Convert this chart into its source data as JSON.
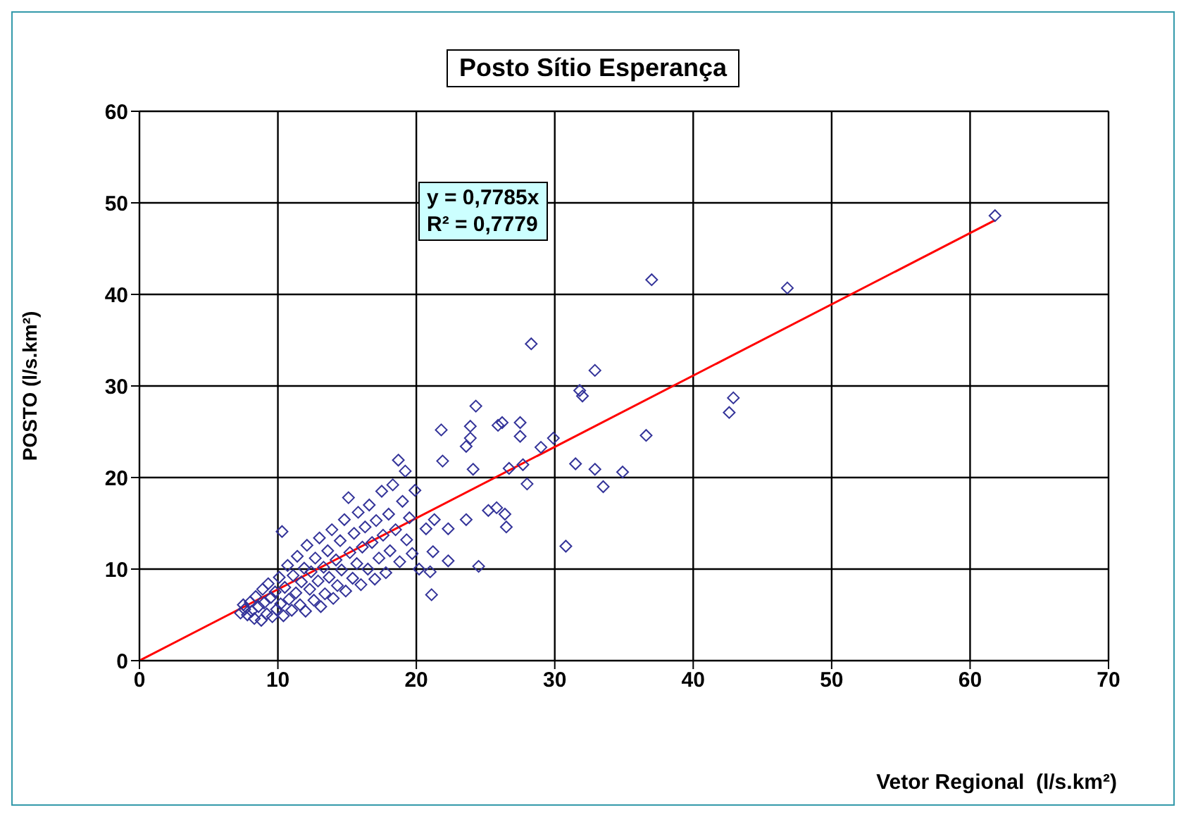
{
  "chart_data": {
    "type": "scatter",
    "title": "Posto Sítio Esperança",
    "xlabel": "Vetor Regional  (l/s.km²)",
    "ylabel": "POSTO (l/s.km²)",
    "annotations": [
      "y = 0,7785x",
      "R² = 0,7779"
    ],
    "xlim": [
      0,
      70
    ],
    "xticks": [
      0,
      10,
      20,
      30,
      40,
      50,
      60,
      70
    ],
    "ylim": [
      0,
      60
    ],
    "yticks": [
      0,
      10,
      20,
      30,
      40,
      50,
      60
    ],
    "grid": true,
    "series": [
      {
        "marker": "diamond",
        "color": "#333399",
        "x": [
          7.3,
          7.5,
          7.6,
          7.8,
          8.0,
          8.1,
          8.3,
          8.4,
          8.6,
          8.8,
          8.9,
          9.0,
          9.2,
          9.3,
          9.5,
          9.6,
          9.8,
          9.9,
          10.1,
          10.2,
          10.3,
          10.4,
          10.5,
          10.7,
          10.8,
          11.0,
          11.1,
          11.3,
          11.4,
          11.6,
          11.7,
          11.9,
          12.0,
          12.1,
          12.3,
          12.4,
          12.6,
          12.7,
          12.9,
          13.0,
          13.1,
          13.3,
          13.4,
          13.6,
          13.7,
          13.9,
          14.0,
          14.2,
          14.3,
          14.5,
          14.6,
          14.8,
          14.9,
          15.1,
          15.2,
          15.4,
          15.5,
          15.7,
          15.8,
          16.0,
          16.1,
          16.3,
          16.5,
          16.6,
          16.8,
          17.0,
          17.1,
          17.3,
          17.5,
          17.6,
          17.8,
          18.0,
          18.1,
          18.3,
          18.5,
          18.7,
          18.8,
          19.0,
          19.2,
          19.3,
          19.5,
          19.7,
          19.9,
          20.2,
          21.0,
          21.2,
          22.3,
          20.7,
          21.3,
          22.3,
          23.6,
          25.2,
          25.8,
          26.4,
          24.1,
          21.9,
          26.7,
          27.7,
          28.0,
          26.5,
          30.8,
          33.5,
          32.9,
          34.9,
          31.5,
          29.0,
          29.9,
          36.6,
          23.9,
          23.6,
          26.2,
          25.9,
          27.5,
          27.5,
          21.8,
          23.9,
          24.3,
          31.8,
          32.0,
          32.9,
          28.3,
          37.0,
          24.5,
          21.1,
          42.6,
          42.9,
          46.8,
          61.8
        ],
        "values": [
          5.2,
          6.1,
          5.6,
          5.0,
          6.4,
          5.4,
          4.6,
          7.0,
          5.9,
          4.4,
          7.8,
          6.3,
          5.1,
          8.4,
          6.9,
          4.8,
          7.5,
          5.6,
          9.1,
          6.2,
          14.1,
          4.9,
          8.0,
          10.4,
          6.7,
          5.5,
          9.3,
          7.4,
          11.4,
          6.1,
          8.6,
          10.1,
          5.4,
          12.6,
          7.8,
          9.7,
          6.6,
          11.2,
          8.7,
          13.4,
          5.9,
          10.2,
          7.3,
          12.0,
          9.1,
          14.3,
          6.8,
          11.0,
          8.2,
          13.1,
          9.9,
          15.4,
          7.6,
          17.8,
          11.8,
          9.0,
          13.9,
          10.6,
          16.2,
          8.3,
          12.4,
          14.6,
          10.0,
          17.0,
          12.9,
          8.9,
          15.3,
          11.2,
          18.5,
          13.7,
          9.6,
          16.0,
          12.0,
          19.2,
          14.3,
          21.9,
          10.8,
          17.4,
          20.7,
          13.2,
          15.6,
          11.7,
          18.6,
          10.0,
          9.7,
          11.9,
          10.9,
          14.4,
          15.4,
          14.4,
          15.4,
          16.4,
          16.7,
          16.0,
          20.9,
          21.8,
          21.0,
          21.4,
          19.3,
          14.6,
          12.5,
          19.0,
          20.9,
          20.6,
          21.5,
          23.3,
          24.3,
          24.6,
          24.3,
          23.4,
          26.0,
          25.7,
          26.0,
          24.5,
          25.2,
          25.6,
          27.8,
          29.5,
          28.9,
          31.7,
          34.6,
          41.6,
          10.3,
          7.2,
          27.1,
          28.7,
          40.7,
          48.6
        ]
      },
      {
        "type": "line",
        "color": "#ff0000",
        "x": [
          0,
          61.8
        ],
        "values": [
          0,
          48.1
        ]
      }
    ]
  }
}
